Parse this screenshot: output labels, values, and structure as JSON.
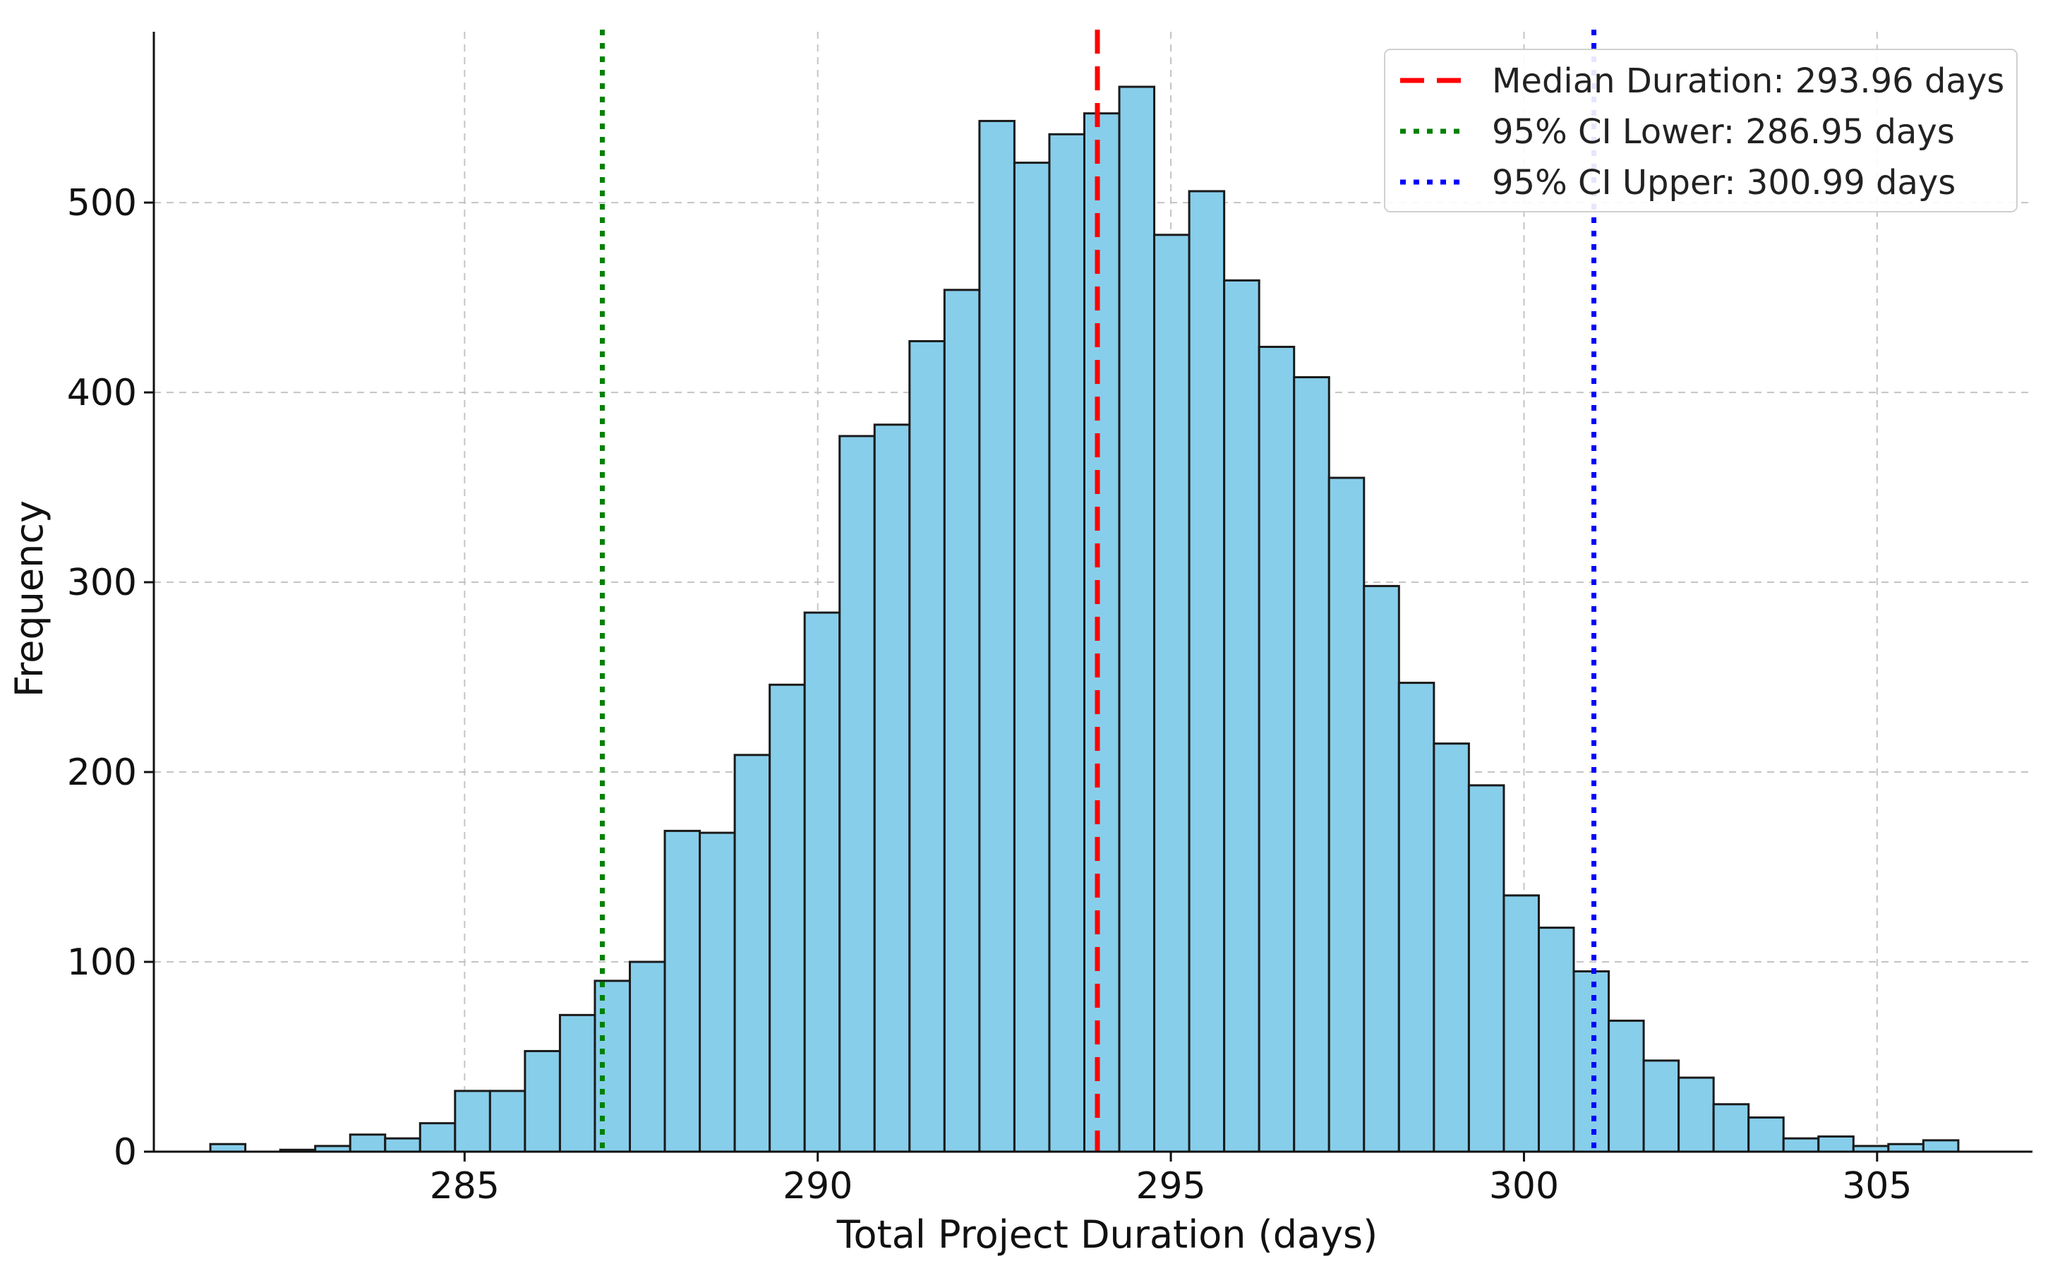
{
  "chart_data": {
    "type": "bar",
    "title": "",
    "xlabel": "Total Project Duration (days)",
    "ylabel": "Frequency",
    "xlim": [
      280.6,
      307.2
    ],
    "ylim": [
      0,
      590
    ],
    "x_ticks": [
      285,
      290,
      295,
      300,
      305
    ],
    "x_tick_labels": [
      "285",
      "290",
      "295",
      "300",
      "305"
    ],
    "y_ticks": [
      0,
      100,
      200,
      300,
      400,
      500
    ],
    "y_tick_labels": [
      "0",
      "100",
      "200",
      "300",
      "400",
      "500"
    ],
    "grid": true,
    "legend_position": "top-right",
    "bar_color": "#87CEEB",
    "bar_edge_color": "#1a1a1a",
    "bins": {
      "start": 281.4,
      "width": 0.495,
      "counts": [
        4,
        0,
        1,
        3,
        9,
        7,
        15,
        32,
        32,
        53,
        72,
        90,
        100,
        169,
        168,
        209,
        246,
        284,
        377,
        383,
        427,
        454,
        543,
        521,
        536,
        547,
        561,
        483,
        506,
        459,
        424,
        408,
        355,
        298,
        247,
        215,
        193,
        135,
        118,
        95,
        69,
        48,
        39,
        25,
        18,
        7,
        8,
        3,
        4,
        6
      ]
    },
    "reference_lines": [
      {
        "label": "Median Duration: 293.96 days",
        "x": 293.96,
        "color": "#ff0000",
        "style": "dashed"
      },
      {
        "label": "95% CI Lower: 286.95 days",
        "x": 286.95,
        "color": "#008000",
        "style": "dotted"
      },
      {
        "label": "95% CI Upper: 300.99 days",
        "x": 300.99,
        "color": "#0000ff",
        "style": "dotted"
      }
    ]
  }
}
